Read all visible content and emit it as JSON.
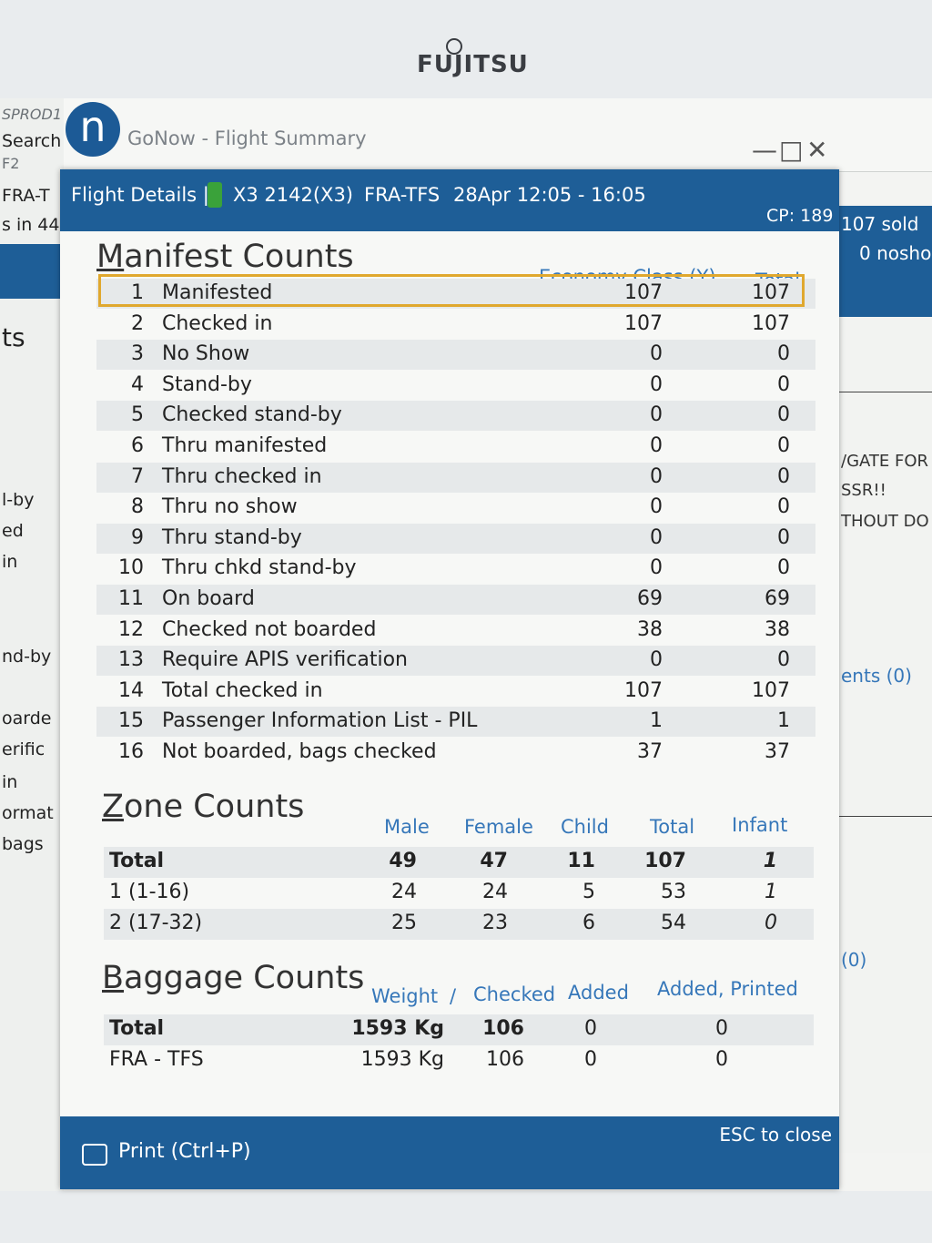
{
  "monitor": {
    "brand": "FUJITSU"
  },
  "background_app": {
    "env": "SPROD1",
    "search": "Search",
    "key": "F2",
    "route": "FRA-T",
    "status_in": "s in 44",
    "partial_labels": [
      "ts",
      "l-by",
      "ed",
      "in",
      "nd-by",
      "oarde",
      "erific",
      "in",
      "ormat",
      "bags"
    ],
    "logo_letter": "n",
    "title": "GoNow - Flight Summary",
    "right": {
      "sold": "107 sold",
      "noshow": "0 nosho",
      "gate": "/GATE FOR",
      "ssr": "SSR!!",
      "without": "THOUT DO",
      "comments": "ents (0)",
      "zero": "(0)"
    }
  },
  "dialog": {
    "header": {
      "flight_details": "Flight Details |",
      "flight": "X3 2142(X3)",
      "route": "FRA-TFS",
      "schedule": "28Apr 12:05 - 16:05",
      "cp": "CP: 189"
    },
    "manifest": {
      "title_first": "M",
      "title_rest": "anifest Counts",
      "col_economy": "Economy Class (Y)",
      "col_total": "Total",
      "rows": [
        {
          "n": "1",
          "label": "Manifested",
          "econ": "107",
          "total": "107"
        },
        {
          "n": "2",
          "label": "Checked in",
          "econ": "107",
          "total": "107"
        },
        {
          "n": "3",
          "label": "No Show",
          "econ": "0",
          "total": "0"
        },
        {
          "n": "4",
          "label": "Stand-by",
          "econ": "0",
          "total": "0"
        },
        {
          "n": "5",
          "label": "Checked stand-by",
          "econ": "0",
          "total": "0"
        },
        {
          "n": "6",
          "label": "Thru manifested",
          "econ": "0",
          "total": "0"
        },
        {
          "n": "7",
          "label": "Thru checked in",
          "econ": "0",
          "total": "0"
        },
        {
          "n": "8",
          "label": "Thru no show",
          "econ": "0",
          "total": "0"
        },
        {
          "n": "9",
          "label": "Thru stand-by",
          "econ": "0",
          "total": "0"
        },
        {
          "n": "10",
          "label": "Thru chkd stand-by",
          "econ": "0",
          "total": "0"
        },
        {
          "n": "11",
          "label": "On board",
          "econ": "69",
          "total": "69"
        },
        {
          "n": "12",
          "label": "Checked not boarded",
          "econ": "38",
          "total": "38"
        },
        {
          "n": "13",
          "label": "Require APIS verification",
          "econ": "0",
          "total": "0"
        },
        {
          "n": "14",
          "label": "Total checked in",
          "econ": "107",
          "total": "107"
        },
        {
          "n": "15",
          "label": "Passenger Information List - PIL",
          "econ": "1",
          "total": "1"
        },
        {
          "n": "16",
          "label": "Not boarded, bags checked",
          "econ": "37",
          "total": "37"
        }
      ]
    },
    "zone": {
      "title_first": "Z",
      "title_rest": "one Counts",
      "cols": [
        "Male",
        "Female",
        "Child",
        "Total",
        "Infant"
      ],
      "rows": [
        {
          "label": "Total",
          "male": "49",
          "female": "47",
          "child": "11",
          "total": "107",
          "infant": "1"
        },
        {
          "label": "1 (1-16)",
          "male": "24",
          "female": "24",
          "child": "5",
          "total": "53",
          "infant": "1"
        },
        {
          "label": "2 (17-32)",
          "male": "25",
          "female": "23",
          "child": "6",
          "total": "54",
          "infant": "0"
        }
      ]
    },
    "baggage": {
      "title_first": "B",
      "title_rest": "aggage Counts",
      "cols": [
        "Weight",
        "/",
        "Checked",
        "Added",
        "Added, Printed"
      ],
      "rows": [
        {
          "label": "Total",
          "weight": "1593 Kg",
          "checked": "106",
          "added": "0",
          "printed": "0"
        },
        {
          "label": "FRA - TFS",
          "weight": "1593 Kg",
          "checked": "106",
          "added": "0",
          "printed": "0"
        }
      ]
    },
    "footer": {
      "print": "Print (Ctrl+P)",
      "esc": "ESC to close"
    }
  }
}
